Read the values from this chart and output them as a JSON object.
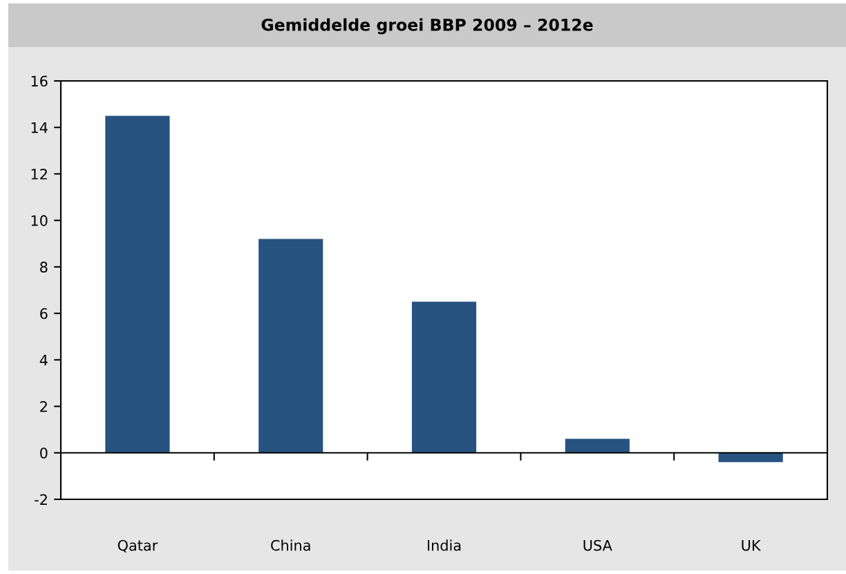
{
  "chart_data": {
    "type": "bar",
    "title": "Gemiddelde groei BBP 2009 – 2012e",
    "categories": [
      "Qatar",
      "China",
      "India",
      "USA",
      "UK"
    ],
    "values": [
      14.5,
      9.2,
      6.5,
      0.6,
      -0.4
    ],
    "color": "#275381",
    "ylim": [
      -2,
      16
    ],
    "yticks": [
      -2,
      0,
      2,
      4,
      6,
      8,
      10,
      12,
      14,
      16
    ]
  }
}
